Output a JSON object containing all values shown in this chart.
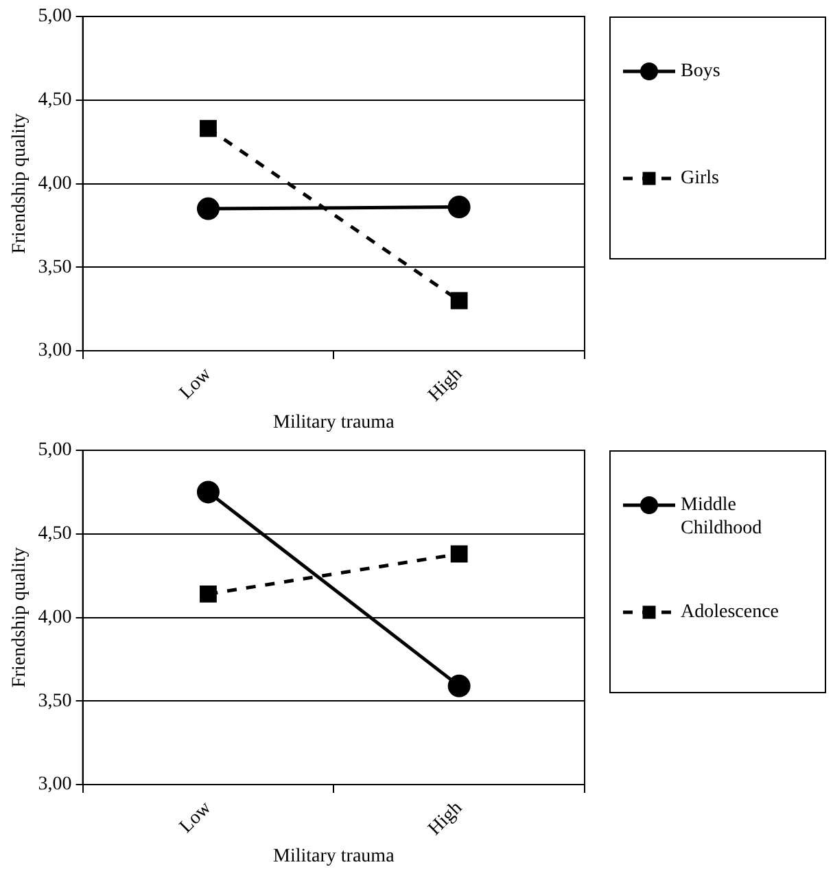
{
  "chart_data": [
    {
      "type": "line",
      "xlabel": "Military trauma",
      "ylabel": "Friendship quality",
      "categories": [
        "Low",
        "High"
      ],
      "series": [
        {
          "name": "Boys",
          "color": "#000000",
          "values": [
            3.85,
            3.86
          ],
          "marker": "circle",
          "line_style": "solid"
        },
        {
          "name": "Girls",
          "color": "#000000",
          "values": [
            4.33,
            3.3
          ],
          "marker": "square",
          "line_style": "dashed"
        }
      ],
      "ylim": [
        3,
        5
      ],
      "yticks": [
        {
          "value": 3,
          "label": "3,00"
        },
        {
          "value": 3.5,
          "label": "3,50"
        },
        {
          "value": 4,
          "label": "4,00"
        },
        {
          "value": 4.5,
          "label": "4,50"
        },
        {
          "value": 5,
          "label": "5,00"
        }
      ],
      "grid": "y",
      "legend": "right"
    },
    {
      "type": "line",
      "xlabel": "Military trauma",
      "ylabel": "Friendship quality",
      "categories": [
        "Low",
        "High"
      ],
      "series": [
        {
          "name": "Middle Childhood",
          "color": "#000000",
          "values": [
            4.75,
            3.59
          ],
          "marker": "circle",
          "line_style": "solid"
        },
        {
          "name": "Adolescence",
          "color": "#000000",
          "values": [
            4.14,
            4.38
          ],
          "marker": "square",
          "line_style": "dashed"
        }
      ],
      "ylim": [
        3,
        5
      ],
      "yticks": [
        {
          "value": 3,
          "label": "3,00"
        },
        {
          "value": 3.5,
          "label": "3,50"
        },
        {
          "value": 4,
          "label": "4,00"
        },
        {
          "value": 4.5,
          "label": "4,50"
        },
        {
          "value": 5,
          "label": "5,00"
        }
      ],
      "grid": "y",
      "legend": "right"
    }
  ]
}
